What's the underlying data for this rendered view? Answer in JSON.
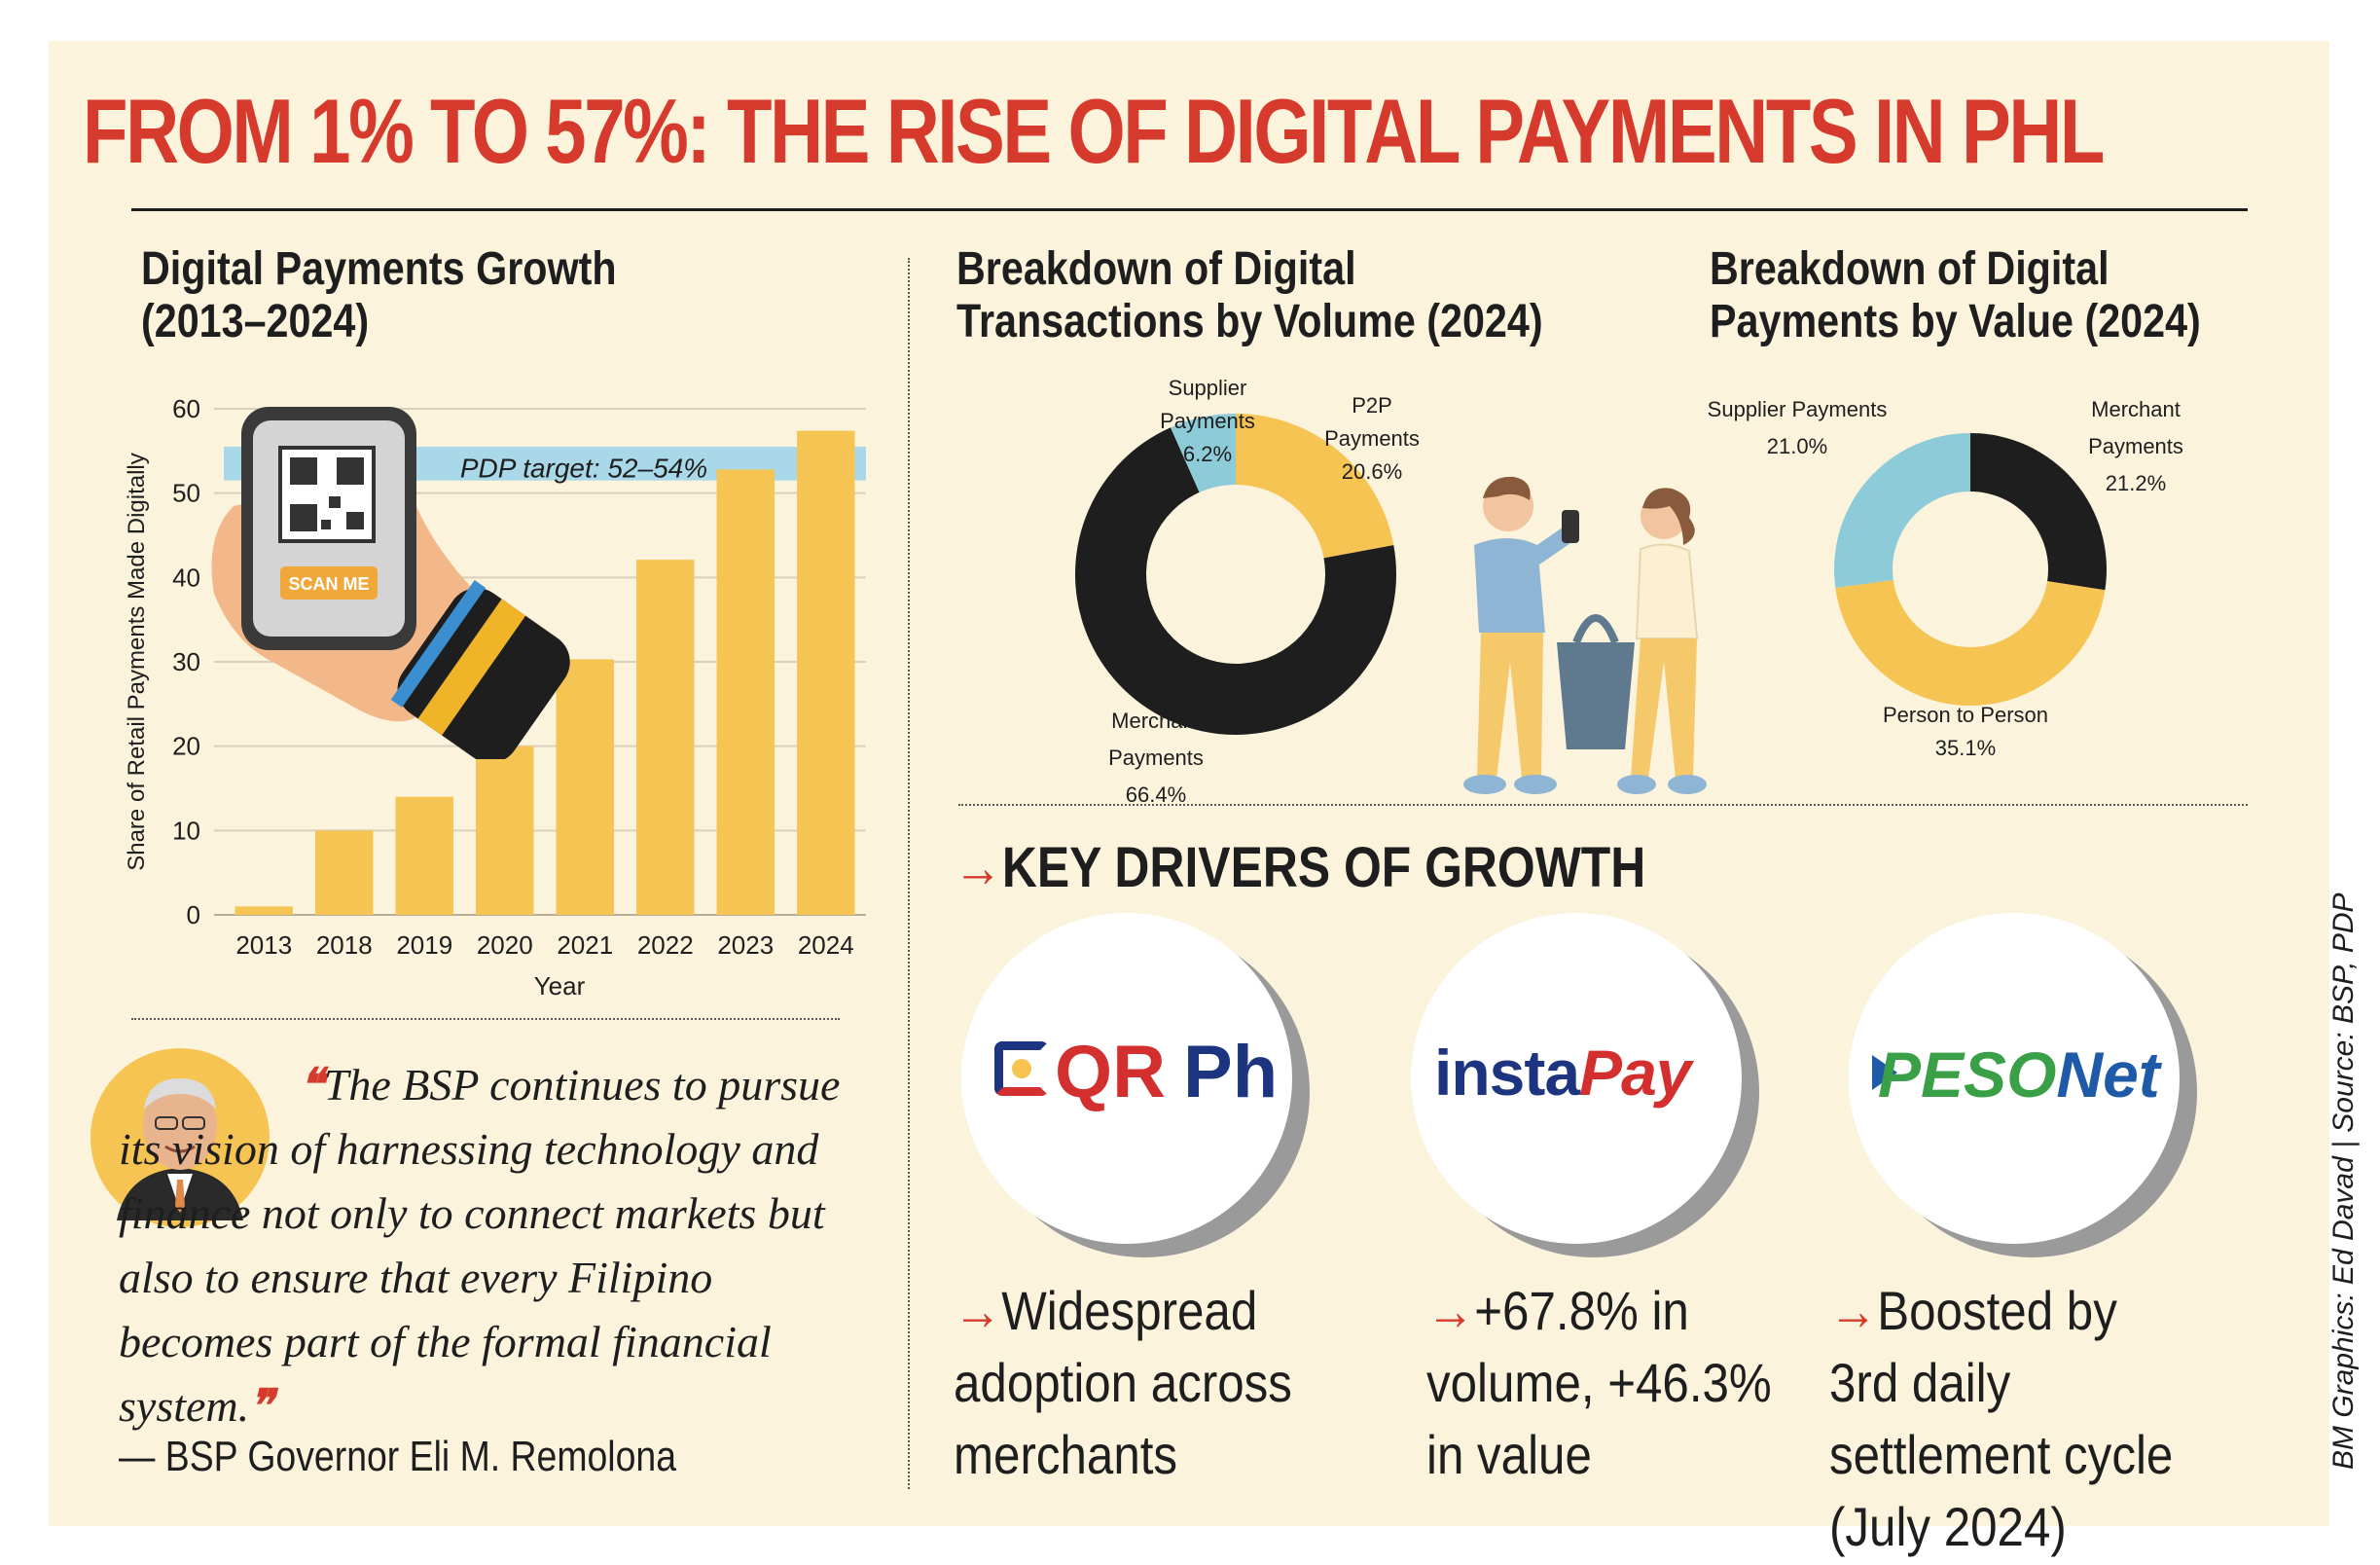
{
  "headline": "FROM 1% TO 57%: THE RISE OF DIGITAL PAYMENTS IN PHL",
  "growth": {
    "title_line1": "Digital Payments Growth",
    "title_line2": "(2013–2024)"
  },
  "volume": {
    "title_line1": "Breakdown of Digital",
    "title_line2": "Transactions by Volume (2024)"
  },
  "value": {
    "title_line1": "Breakdown of Digital",
    "title_line2": "Payments by Value (2024)"
  },
  "chart_data": [
    {
      "type": "bar",
      "title": "Digital Payments Growth (2013–2024)",
      "xlabel": "Year",
      "ylabel": "Share of Retail Payments Made Digitally",
      "categories": [
        "2013",
        "2018",
        "2019",
        "2020",
        "2021",
        "2022",
        "2023",
        "2024"
      ],
      "values": [
        1,
        10,
        14,
        20,
        30.3,
        42.1,
        52.8,
        57.4
      ],
      "ylim": [
        0,
        60
      ],
      "yticks": [
        "0",
        "10",
        "20",
        "30",
        "40",
        "50",
        "60"
      ],
      "grid": true,
      "colors": {
        "bar": "#f5c452",
        "target_band": "#a9d9e8"
      },
      "annotations": [
        {
          "label": "PDP target: 52–54%",
          "y_range": [
            52,
            54
          ]
        }
      ]
    },
    {
      "type": "pie",
      "title": "Breakdown of Digital Transactions by Volume (2024)",
      "slices": [
        {
          "label": "Merchant Payments",
          "value": 66.4,
          "value_label": "66.4%",
          "color": "#1e1e1e"
        },
        {
          "label": "Supplier Payments",
          "value": 6.2,
          "value_label": "6.2%",
          "color": "#8ecbd9"
        },
        {
          "label": "P2P Payments",
          "value": 20.6,
          "value_label": "20.6%",
          "color": "#f5c452"
        }
      ]
    },
    {
      "type": "pie",
      "title": "Breakdown of Digital Payments by Value (2024)",
      "slices": [
        {
          "label": "Merchant Payments",
          "value": 21.2,
          "value_label": "21.2%",
          "color": "#1e1e1e"
        },
        {
          "label": "Person to Person",
          "value": 35.1,
          "value_label": "35.1%",
          "color": "#f5c452"
        },
        {
          "label": "Supplier Payments",
          "value": 21.0,
          "value_label": "21.0%",
          "color": "#8ecbd9"
        }
      ]
    }
  ],
  "phone": {
    "scan_label": "SCAN ME"
  },
  "quote": {
    "open_mark": "❝",
    "text": "The BSP continues to pursue its vision of harnessing technology and finance not only to connect markets but also to ensure that every Filipino becomes part of the formal financial system.",
    "close_mark": "❞",
    "attribution": "— BSP Governor Eli M. Remolona"
  },
  "drivers": {
    "arrow": "→",
    "title": "KEY DRIVERS OF GROWTH",
    "items": [
      {
        "logo_a": "QR",
        "logo_b": "Ph",
        "text": "Widespread adoption across merchants"
      },
      {
        "logo_a": "insta",
        "logo_b": "Pay",
        "text": "+67.8% in volume, +46.3% in value"
      },
      {
        "logo_a": "PESO",
        "logo_b": "Net",
        "text": "Boosted by 3rd daily settlement cycle (July 2024)"
      }
    ]
  },
  "credit": "BM Graphics: Ed Davad | Source: BSP, PDP",
  "colors": {
    "accent_red": "#d63a2c",
    "yellow": "#f5c452",
    "blue": "#8ecbd9",
    "dark": "#1e1e1e",
    "qr_red": "#d32f2f",
    "qr_blue": "#1d3580",
    "peso_green": "#3aa048",
    "peso_blue": "#1e5aa8"
  }
}
